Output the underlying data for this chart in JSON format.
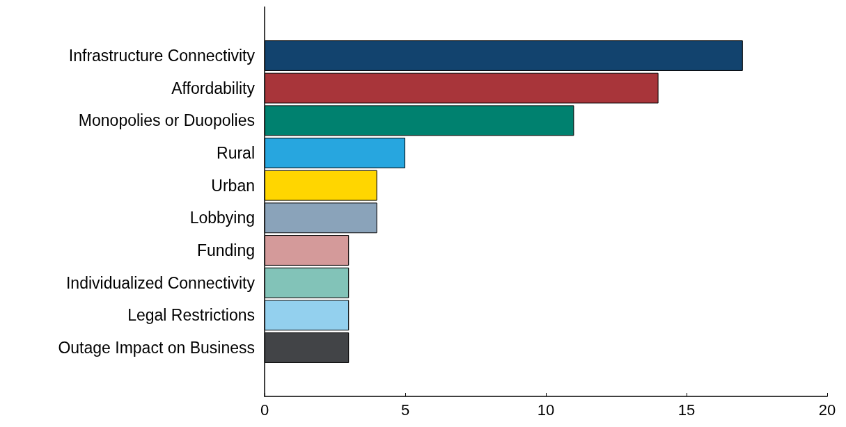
{
  "chart_data": {
    "type": "bar",
    "orientation": "horizontal",
    "categories": [
      "Infrastructure Connectivity",
      "Affordability",
      "Monopolies or Duopolies",
      "Rural",
      "Urban",
      "Lobbying",
      "Funding",
      "Individualized Connectivity",
      "Legal Restrictions",
      "Outage Impact on Business"
    ],
    "values": [
      17,
      14,
      11,
      5,
      4,
      4,
      3,
      3,
      3,
      3
    ],
    "colors": [
      "#12436e",
      "#a8353a",
      "#00816f",
      "#27a6df",
      "#ffd600",
      "#8aa3ba",
      "#d49a9a",
      "#82c3b8",
      "#93d0ee",
      "#424447"
    ],
    "xlim": [
      0,
      20
    ],
    "xticks": [
      0,
      5,
      10,
      15,
      20
    ],
    "grid": false
  }
}
